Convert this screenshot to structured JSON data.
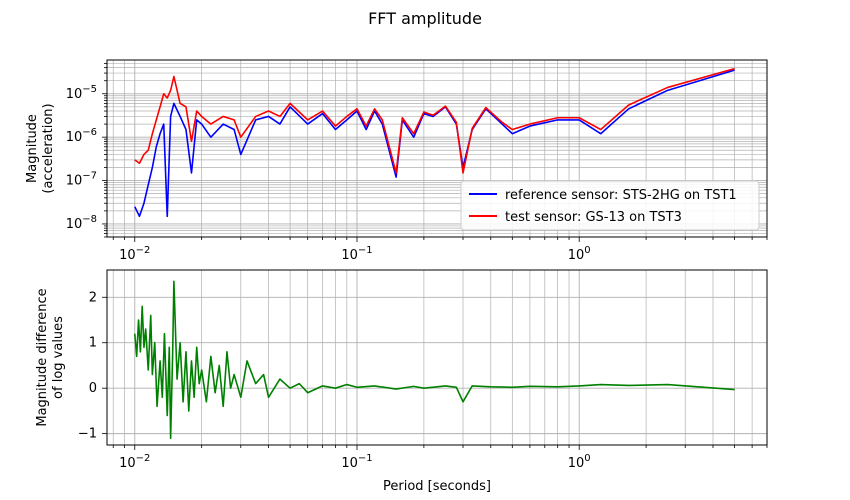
{
  "title": "FFT amplitude",
  "colors": {
    "reference": "#0000ff",
    "test": "#ff0000",
    "difference": "#008000",
    "grid": "#b0b0b0"
  },
  "chart_data": [
    {
      "type": "line",
      "xscale": "log",
      "yscale": "log",
      "xlim": [
        0.0075,
        7.0
      ],
      "ylim": [
        5e-09,
        6e-05
      ],
      "grid": true,
      "legend_position": "lower-right",
      "xlabel": "",
      "ylabel": "Magnitude\n(acceleration)",
      "x_ticks": [
        "10^-2",
        "10^-1",
        "10^0"
      ],
      "y_ticks": [
        "10^-8",
        "10^-7",
        "10^-6",
        "10^-5"
      ],
      "series": [
        {
          "name": "reference sensor: STS-2HG on TST1",
          "color": "#0000ff",
          "x": [
            0.01,
            0.0105,
            0.011,
            0.0115,
            0.012,
            0.0125,
            0.013,
            0.0135,
            0.014,
            0.0145,
            0.015,
            0.016,
            0.017,
            0.018,
            0.019,
            0.02,
            0.022,
            0.025,
            0.028,
            0.03,
            0.035,
            0.04,
            0.045,
            0.05,
            0.06,
            0.07,
            0.08,
            0.09,
            0.1,
            0.11,
            0.12,
            0.13,
            0.15,
            0.16,
            0.18,
            0.2,
            0.22,
            0.25,
            0.28,
            0.3,
            0.33,
            0.38,
            0.45,
            0.5,
            0.6,
            0.8,
            1.0,
            1.25,
            1.67,
            2.5,
            5.0
          ],
          "y": [
            2.5e-08,
            1.5e-08,
            3e-08,
            8e-08,
            2e-07,
            6e-07,
            1.2e-06,
            2e-06,
            1.5e-08,
            3e-06,
            6e-06,
            3e-06,
            1.5e-06,
            1.5e-07,
            2.5e-06,
            2e-06,
            1e-06,
            2e-06,
            1.5e-06,
            4e-07,
            2.5e-06,
            3e-06,
            2e-06,
            5e-06,
            2e-06,
            3.5e-06,
            1.5e-06,
            2.5e-06,
            4e-06,
            1.5e-06,
            4e-06,
            2e-06,
            1.2e-07,
            2.5e-06,
            1e-06,
            3.5e-06,
            3e-06,
            5e-06,
            2e-06,
            2e-07,
            1.5e-06,
            4.5e-06,
            2e-06,
            1.2e-06,
            1.8e-06,
            2.5e-06,
            2.5e-06,
            1.2e-06,
            4.5e-06,
            1.2e-05,
            3.5e-05
          ]
        },
        {
          "name": "test sensor: GS-13 on TST3",
          "color": "#ff0000",
          "x": [
            0.01,
            0.0105,
            0.011,
            0.0115,
            0.012,
            0.0125,
            0.013,
            0.0135,
            0.014,
            0.0145,
            0.015,
            0.016,
            0.017,
            0.018,
            0.019,
            0.02,
            0.022,
            0.025,
            0.028,
            0.03,
            0.035,
            0.04,
            0.045,
            0.05,
            0.06,
            0.07,
            0.08,
            0.09,
            0.1,
            0.11,
            0.12,
            0.13,
            0.15,
            0.16,
            0.18,
            0.2,
            0.22,
            0.25,
            0.28,
            0.3,
            0.33,
            0.38,
            0.45,
            0.5,
            0.6,
            0.8,
            1.0,
            1.25,
            1.67,
            2.5,
            5.0
          ],
          "y": [
            3e-07,
            2.5e-07,
            4e-07,
            5e-07,
            1.2e-06,
            2.5e-06,
            5e-06,
            1e-05,
            8e-06,
            1.2e-05,
            2.5e-05,
            6e-06,
            5e-06,
            8e-07,
            4e-06,
            3e-06,
            2e-06,
            3e-06,
            2.5e-06,
            1e-06,
            3e-06,
            4e-06,
            3e-06,
            6e-06,
            2.5e-06,
            4e-06,
            1.8e-06,
            3e-06,
            4.5e-06,
            1.8e-06,
            4.5e-06,
            2.5e-06,
            1.5e-07,
            2.8e-06,
            1.2e-06,
            3.8e-06,
            3.2e-06,
            5.2e-06,
            2.2e-06,
            1.5e-07,
            1.6e-06,
            4.8e-06,
            2.2e-06,
            1.5e-06,
            2e-06,
            2.8e-06,
            2.8e-06,
            1.5e-06,
            5.5e-06,
            1.4e-05,
            3.8e-05
          ]
        }
      ]
    },
    {
      "type": "line",
      "xscale": "log",
      "yscale": "linear",
      "xlim": [
        0.0075,
        7.0
      ],
      "ylim": [
        -1.25,
        2.6
      ],
      "grid": true,
      "xlabel": "Period [seconds]",
      "ylabel": "Magnitude difference\nof log values",
      "x_ticks": [
        "10^-2",
        "10^-1",
        "10^0"
      ],
      "y_ticks": [
        "−1",
        "0",
        "1",
        "2"
      ],
      "series": [
        {
          "name": "",
          "color": "#008000",
          "x": [
            0.01,
            0.0102,
            0.0104,
            0.0106,
            0.0108,
            0.011,
            0.0112,
            0.0115,
            0.0118,
            0.012,
            0.0123,
            0.0126,
            0.013,
            0.0133,
            0.0136,
            0.014,
            0.0143,
            0.0145,
            0.0148,
            0.015,
            0.0155,
            0.016,
            0.0165,
            0.017,
            0.0175,
            0.018,
            0.0185,
            0.019,
            0.0195,
            0.02,
            0.021,
            0.022,
            0.023,
            0.024,
            0.025,
            0.026,
            0.027,
            0.028,
            0.03,
            0.032,
            0.035,
            0.038,
            0.04,
            0.045,
            0.05,
            0.055,
            0.06,
            0.07,
            0.08,
            0.09,
            0.1,
            0.12,
            0.15,
            0.18,
            0.2,
            0.25,
            0.28,
            0.3,
            0.33,
            0.4,
            0.5,
            0.6,
            0.8,
            1.0,
            1.25,
            1.67,
            2.5,
            5.0
          ],
          "y": [
            1.2,
            0.7,
            1.5,
            0.8,
            1.8,
            0.9,
            1.3,
            0.4,
            1.6,
            0.3,
            1.0,
            -0.4,
            0.6,
            -0.2,
            1.2,
            -0.6,
            0.9,
            -1.1,
            0.7,
            2.35,
            0.2,
            1.0,
            -0.3,
            0.8,
            -0.5,
            0.6,
            -0.2,
            0.9,
            0.1,
            0.4,
            -0.3,
            0.7,
            -0.1,
            0.5,
            -0.4,
            0.8,
            0.0,
            0.3,
            -0.2,
            0.6,
            0.1,
            0.3,
            -0.2,
            0.2,
            0.0,
            0.1,
            -0.1,
            0.05,
            0.0,
            0.08,
            0.02,
            0.05,
            -0.02,
            0.04,
            0.0,
            0.05,
            0.02,
            -0.3,
            0.05,
            0.03,
            0.02,
            0.04,
            0.03,
            0.05,
            0.08,
            0.06,
            0.08,
            -0.03
          ]
        }
      ]
    }
  ]
}
